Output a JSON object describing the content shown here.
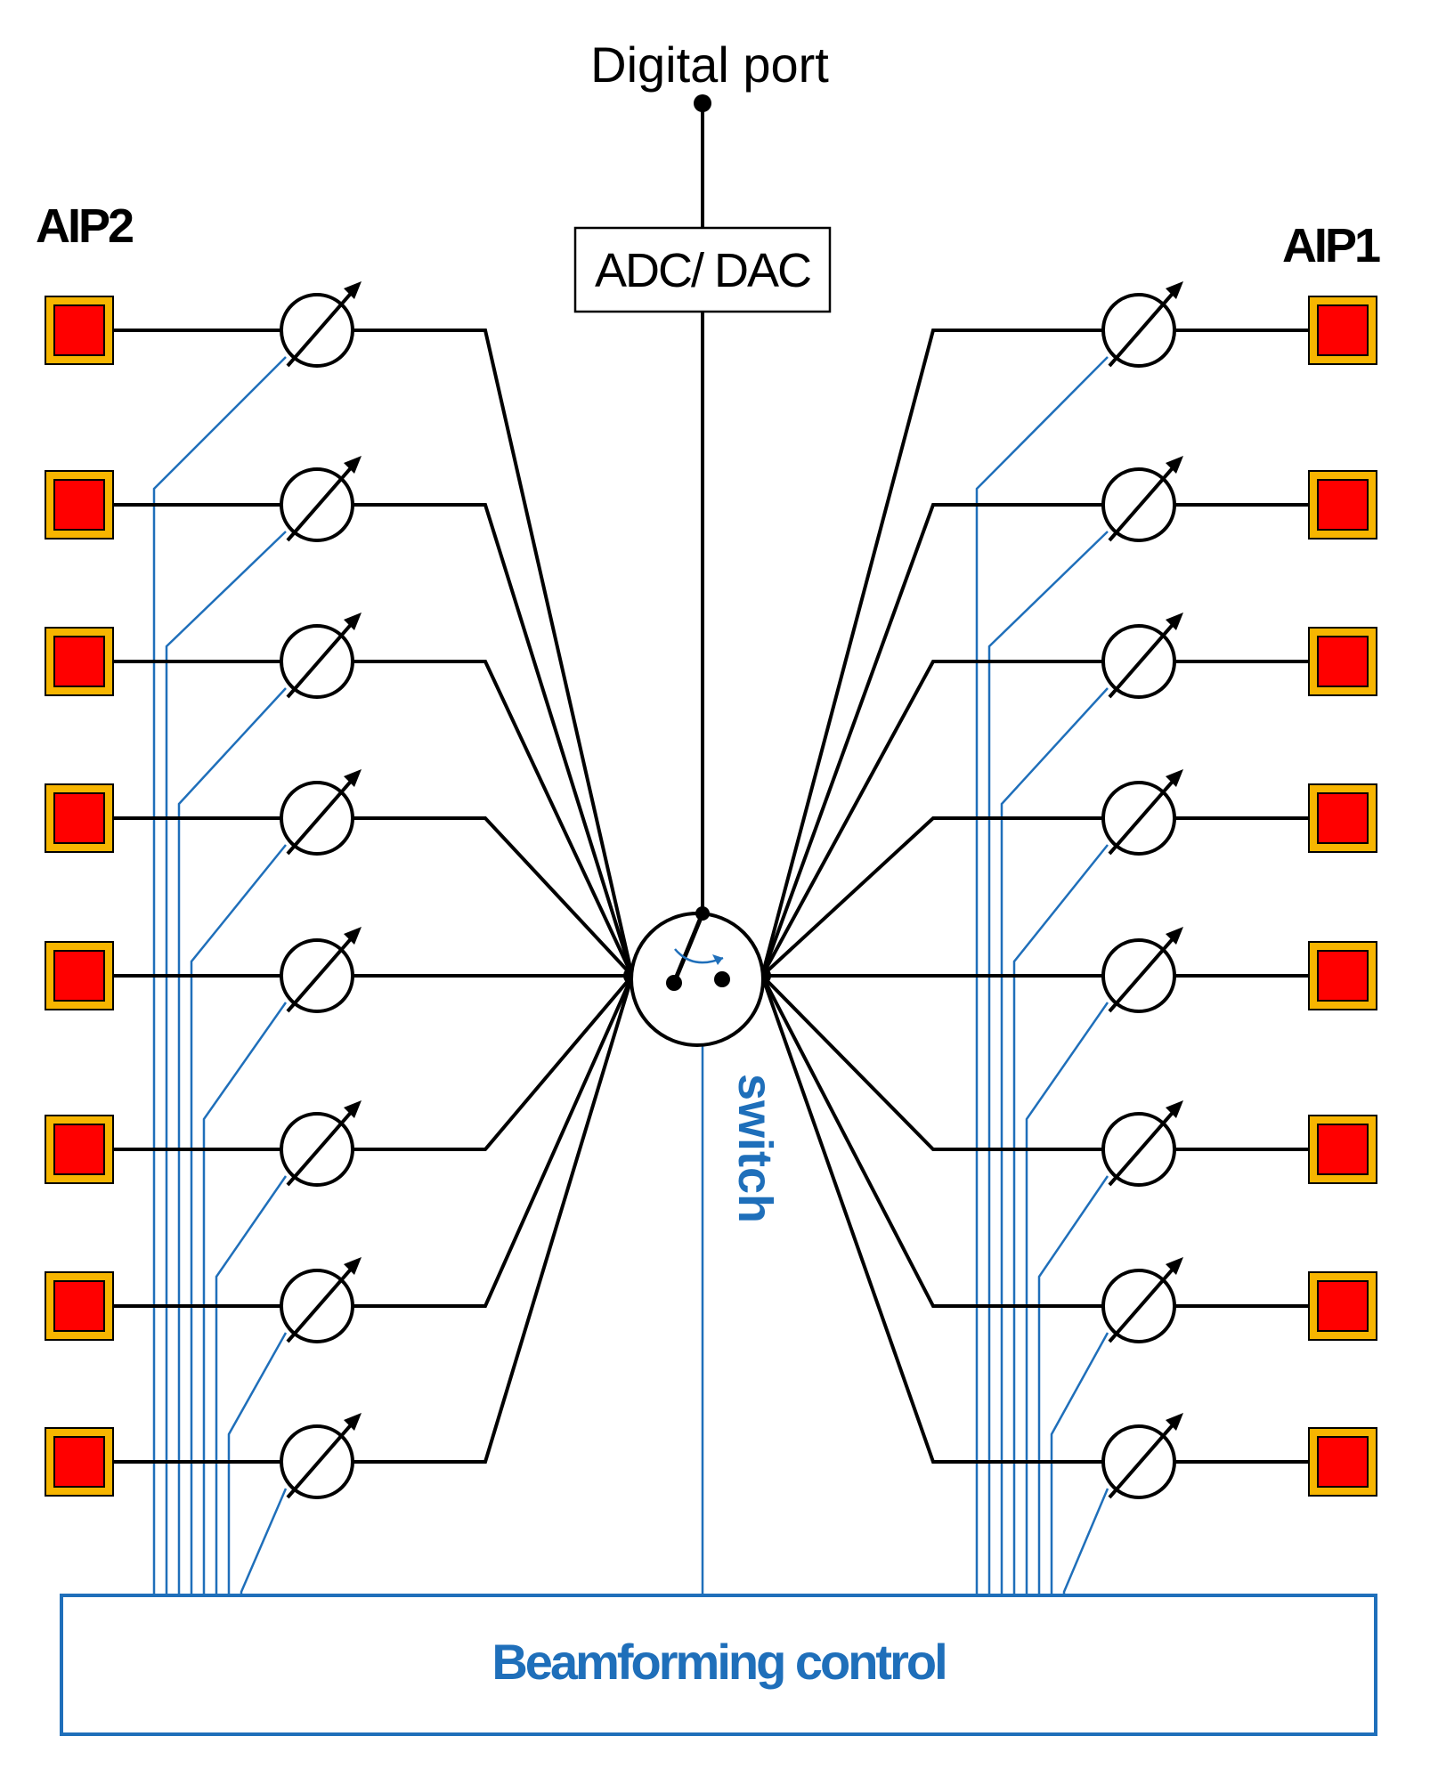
{
  "labels": {
    "digital_port": "Digital port",
    "converter": "ADC/ DAC",
    "left_array": "AIP2",
    "right_array": "AIP1",
    "switch": "switch",
    "control": "Beamforming control"
  },
  "element_count_per_array": 8,
  "colors": {
    "rf_line": "#000000",
    "control_line": "#1f6fba",
    "antenna_outer": "#f7b500",
    "antenna_inner": "#ff0000"
  },
  "icons": {
    "antenna": "antenna-element-icon",
    "phase_shifter": "phase-shifter-icon",
    "switch": "rf-switch-icon"
  }
}
